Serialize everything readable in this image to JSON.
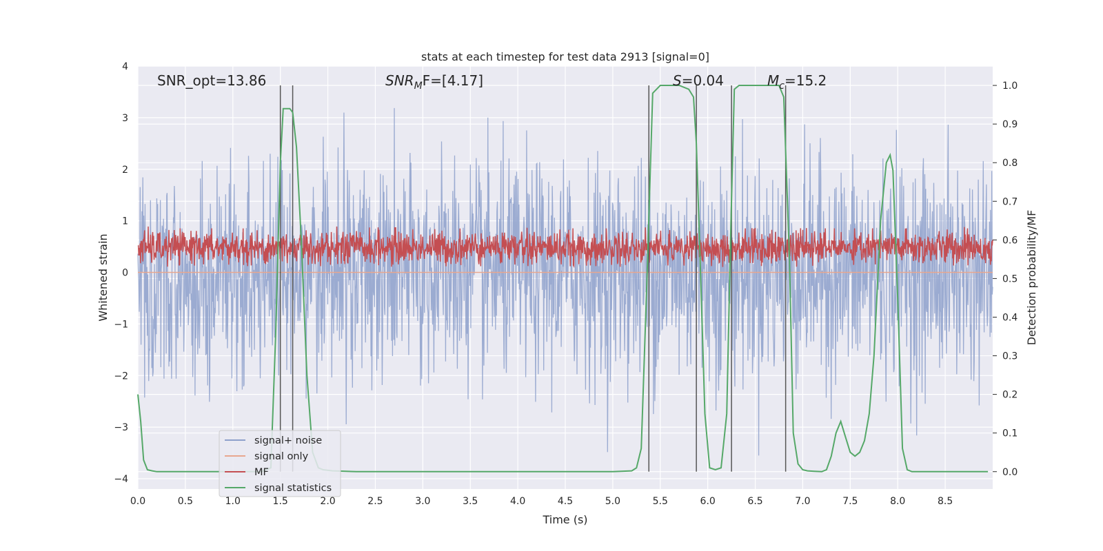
{
  "chart_data": {
    "type": "line",
    "title": "stats at each timestep for test data 2913 [signal=0]",
    "xlabel": "Time (s)",
    "ylabel_left": "Whitened strain",
    "ylabel_right": "Detection probability/MF",
    "xlim": [
      0.0,
      9.0
    ],
    "ylim_left": [
      -4.2,
      4.0
    ],
    "ylim_right": [
      -0.045,
      1.05
    ],
    "grid": true,
    "legend_position": "lower-left",
    "x_ticks": [
      "0.0",
      "0.5",
      "1.0",
      "1.5",
      "2.0",
      "2.5",
      "3.0",
      "3.5",
      "4.0",
      "4.5",
      "5.0",
      "5.5",
      "6.0",
      "6.5",
      "7.0",
      "7.5",
      "8.0",
      "8.5"
    ],
    "y_ticks_left": [
      "4",
      "3",
      "2",
      "1",
      "0",
      "−1",
      "−2",
      "−3",
      "−4"
    ],
    "y_ticks_right": [
      "1.0",
      "0.9",
      "0.8",
      "0.7",
      "0.6",
      "0.5",
      "0.4",
      "0.3",
      "0.2",
      "0.1",
      "0.0"
    ],
    "annotations": {
      "snr_opt": "SNR_opt=13.86",
      "snr_mf_main": "SNR",
      "snr_mf_sub": "M",
      "snr_mf_rest": "F=[4.17]",
      "s_var": "S",
      "s_rest": "=0.04",
      "mc_var": "M",
      "mc_sub": "c",
      "mc_rest": "=15.2"
    },
    "vertical_lines": [
      1.5,
      1.63,
      5.38,
      5.88,
      6.25,
      6.82
    ],
    "series": [
      {
        "name": "signal+ noise",
        "color": "#8da0cb",
        "axis": "left",
        "description_values": {
          "typical_band": [
            -2.0,
            2.0
          ],
          "peak_range": [
            -4.0,
            3.6
          ]
        }
      },
      {
        "name": "signal only",
        "color": "#e8a68e",
        "axis": "left",
        "values_flat": 0.0
      },
      {
        "name": "MF",
        "color": "#c44e52",
        "axis": "right",
        "description_values": {
          "band": [
            0.53,
            0.63
          ]
        }
      },
      {
        "name": "signal statistics",
        "color": "#55a868",
        "axis": "right",
        "x": [
          0.0,
          0.03,
          0.06,
          0.1,
          0.15,
          0.2,
          0.3,
          0.4,
          0.5,
          0.7,
          0.9,
          1.1,
          1.3,
          1.4,
          1.45,
          1.5,
          1.53,
          1.56,
          1.6,
          1.63,
          1.67,
          1.72,
          1.78,
          1.84,
          1.9,
          1.95,
          2.05,
          2.3,
          3.0,
          4.0,
          4.5,
          5.0,
          5.2,
          5.25,
          5.3,
          5.36,
          5.42,
          5.5,
          5.6,
          5.7,
          5.8,
          5.85,
          5.88,
          5.92,
          5.97,
          6.02,
          6.08,
          6.14,
          6.2,
          6.24,
          6.28,
          6.33,
          6.45,
          6.6,
          6.75,
          6.8,
          6.86,
          6.9,
          6.95,
          7.0,
          7.05,
          7.12,
          7.2,
          7.25,
          7.3,
          7.35,
          7.4,
          7.45,
          7.5,
          7.55,
          7.6,
          7.65,
          7.7,
          7.75,
          7.82,
          7.88,
          7.92,
          7.95,
          8.0,
          8.05,
          8.1,
          8.15,
          8.25,
          8.5,
          8.8,
          8.95
        ],
        "values": [
          0.2,
          0.13,
          0.03,
          0.005,
          0.002,
          0.0,
          0.0,
          0.0,
          0.0,
          0.0,
          0.0,
          0.0,
          0.0,
          0.01,
          0.35,
          0.8,
          0.94,
          0.94,
          0.94,
          0.93,
          0.84,
          0.6,
          0.25,
          0.05,
          0.01,
          0.005,
          0.002,
          0.0,
          0.0,
          0.0,
          0.0,
          0.0,
          0.002,
          0.01,
          0.06,
          0.5,
          0.98,
          1.0,
          1.0,
          1.0,
          0.99,
          0.97,
          0.85,
          0.55,
          0.15,
          0.01,
          0.005,
          0.01,
          0.15,
          0.6,
          0.99,
          1.0,
          1.0,
          1.0,
          1.0,
          0.97,
          0.55,
          0.1,
          0.02,
          0.005,
          0.002,
          0.001,
          0.0,
          0.005,
          0.04,
          0.1,
          0.13,
          0.09,
          0.05,
          0.04,
          0.05,
          0.08,
          0.15,
          0.3,
          0.65,
          0.8,
          0.82,
          0.78,
          0.45,
          0.06,
          0.005,
          0.0,
          0.0,
          0.0,
          0.0,
          0.0
        ]
      }
    ]
  }
}
